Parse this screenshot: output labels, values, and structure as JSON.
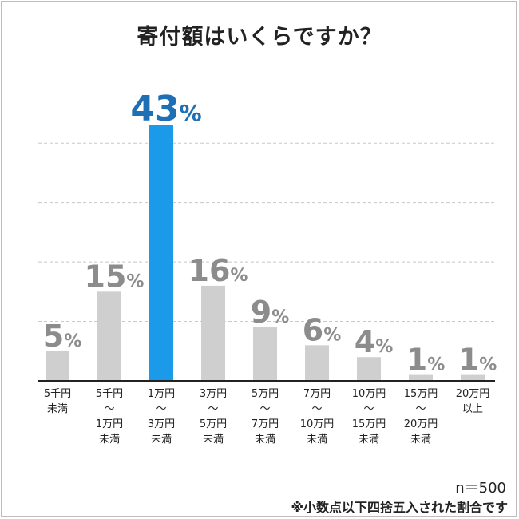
{
  "title": "寄付額はいくらですか？",
  "sample_size": "n＝500",
  "footnote": "※小数点以下四捨五入された割合です",
  "colors": {
    "bar": "#cfcfcf",
    "highlight": "#1a9ae8",
    "value_text": "#8c8c8c",
    "highlight_text": "#1f6fb5",
    "grid": "#c8c8c8",
    "axis": "#222222",
    "border": "#bdbdbd"
  },
  "chart_data": {
    "type": "bar",
    "title": "寄付額はいくらですか？",
    "categories": [
      "5千円\n未満",
      "5千円\n〜\n1万円\n未満",
      "1万円\n〜\n3万円\n未満",
      "3万円\n〜\n5万円\n未満",
      "5万円\n〜\n7万円\n未満",
      "7万円\n〜\n10万円\n未満",
      "10万円\n〜\n15万円\n未満",
      "15万円\n〜\n20万円\n未満",
      "20万円\n以上"
    ],
    "values": [
      5,
      15,
      43,
      16,
      9,
      6,
      4,
      1,
      1
    ],
    "value_labels": [
      "5",
      "15",
      "43",
      "16",
      "9",
      "6",
      "4",
      "1",
      "1"
    ],
    "unit": "%",
    "highlight_index": 2,
    "ylim": [
      0,
      45
    ],
    "grid": true,
    "xlabel": "",
    "ylabel": ""
  }
}
